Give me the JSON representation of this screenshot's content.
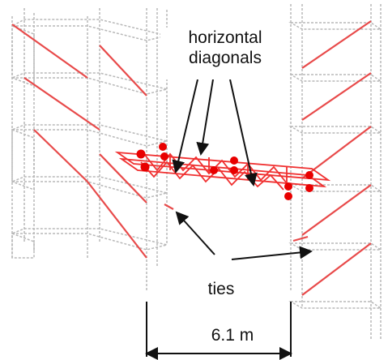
{
  "labels": {
    "horizontal_diagonals_line1": "horizontal",
    "horizontal_diagonals_line2": "diagonals",
    "ties": "ties",
    "dimension": "6.1 m"
  },
  "colors": {
    "scaffold": "#b8b8b8",
    "brace": "#e84a4a",
    "truss": "#f03030",
    "node": "#e80000",
    "arrow": "#111111",
    "text": "#111111"
  }
}
